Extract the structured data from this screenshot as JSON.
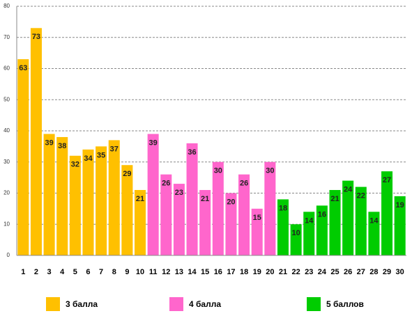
{
  "chart_data": {
    "type": "bar",
    "categories": [
      "1",
      "2",
      "3",
      "4",
      "5",
      "6",
      "7",
      "8",
      "9",
      "10",
      "11",
      "12",
      "13",
      "14",
      "15",
      "16",
      "17",
      "18",
      "19",
      "20",
      "21",
      "22",
      "23",
      "24",
      "25",
      "26",
      "27",
      "28",
      "29",
      "30"
    ],
    "series": [
      {
        "name": "3 балла",
        "color": "#FFC000",
        "values": [
          63,
          73,
          39,
          38,
          32,
          34,
          35,
          37,
          29,
          21,
          null,
          null,
          null,
          null,
          null,
          null,
          null,
          null,
          null,
          null,
          null,
          null,
          null,
          null,
          null,
          null,
          null,
          null,
          null,
          null
        ]
      },
      {
        "name": "4 балла",
        "color": "#FF66CC",
        "values": [
          null,
          null,
          null,
          null,
          null,
          null,
          null,
          null,
          null,
          null,
          39,
          26,
          23,
          36,
          21,
          30,
          20,
          26,
          15,
          30,
          null,
          null,
          null,
          null,
          null,
          null,
          null,
          null,
          null,
          null
        ]
      },
      {
        "name": "5 баллов",
        "color": "#00CC00",
        "values": [
          null,
          null,
          null,
          null,
          null,
          null,
          null,
          null,
          null,
          null,
          null,
          null,
          null,
          null,
          null,
          null,
          null,
          null,
          null,
          null,
          18,
          10,
          14,
          16,
          21,
          24,
          22,
          14,
          27,
          19
        ]
      }
    ],
    "ylim": [
      0,
      80
    ],
    "yticks": [
      0,
      10,
      20,
      30,
      40,
      50,
      60,
      70,
      80
    ],
    "grid": true,
    "legend": "bottom"
  }
}
